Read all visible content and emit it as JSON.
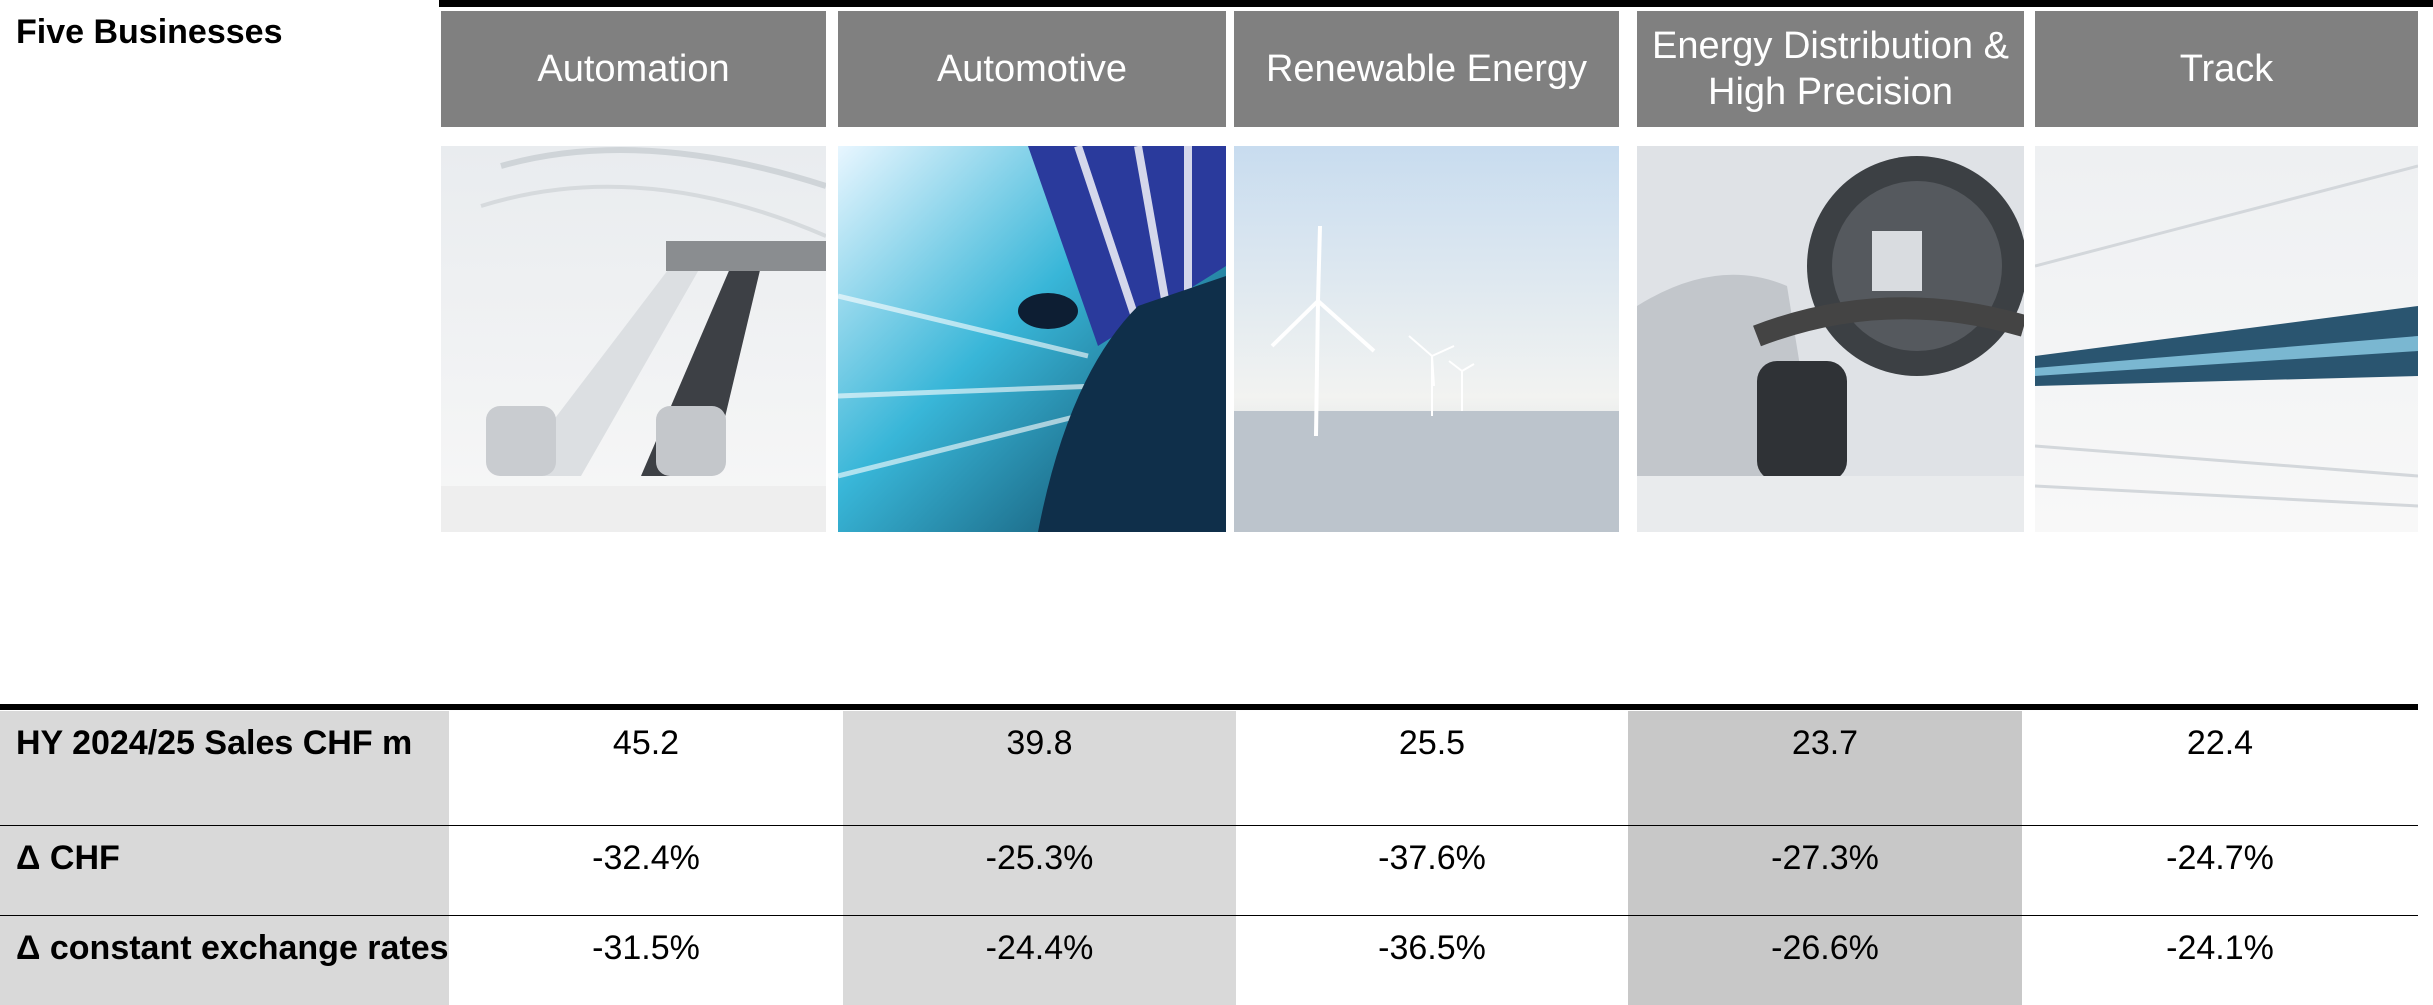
{
  "title": "Five Businesses",
  "businesses": [
    "Automation",
    "Automotive",
    "Renewable Energy",
    "Energy Distribution & High Precision",
    "Track"
  ],
  "table": {
    "rows": [
      {
        "label": "HY 2024/25 Sales CHF m",
        "values": [
          "45.2",
          "39.8",
          "25.5",
          "23.7",
          "22.4"
        ]
      },
      {
        "label": "Δ  CHF",
        "values": [
          "-32.4%",
          "-25.3%",
          "-37.6%",
          "-27.3%",
          "-24.7%"
        ]
      },
      {
        "label": "Δ constant exchange rates",
        "values": [
          "-31.5%",
          "-24.4%",
          "-36.5%",
          "-26.6%",
          "-24.1%"
        ]
      }
    ]
  }
}
